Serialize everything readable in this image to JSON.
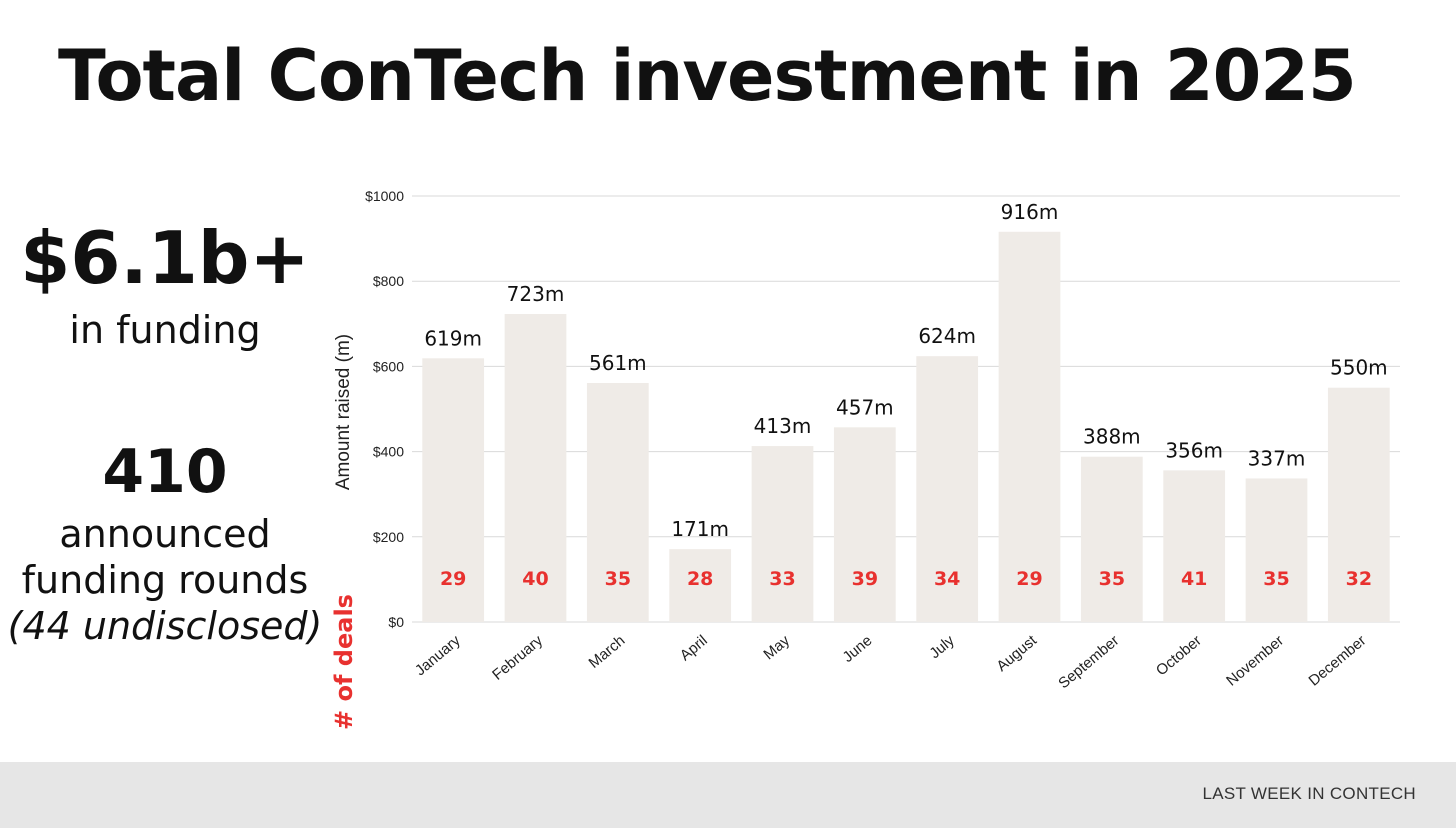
{
  "title": "Total ConTech investment in 2025",
  "stats": {
    "funding_value": "$6.1b+",
    "funding_label": "in funding",
    "rounds_value": "410",
    "rounds_label_1": "announced",
    "rounds_label_2": "funding rounds",
    "rounds_note": "(44 undisclosed)"
  },
  "footer": {
    "brand": "LAST WEEK IN CONTECH"
  },
  "colors": {
    "bar": "#efebe7",
    "deals": "#e8312f",
    "grid": "#d9d9d9",
    "text": "#111111"
  },
  "chart_data": {
    "type": "bar",
    "title": "",
    "xlabel": "",
    "ylabel": "Amount raised (m)",
    "secondary_label": "# of deals",
    "ylim": [
      0,
      1000
    ],
    "yticks": [
      0,
      200,
      400,
      600,
      800,
      1000
    ],
    "ytick_labels": [
      "$0",
      "$200",
      "$400",
      "$600",
      "$800",
      "$1000"
    ],
    "categories": [
      "January",
      "February",
      "March",
      "April",
      "May",
      "June",
      "July",
      "August",
      "September",
      "October",
      "November",
      "December"
    ],
    "values": [
      619,
      723,
      561,
      171,
      413,
      457,
      624,
      916,
      388,
      356,
      337,
      550
    ],
    "value_labels": [
      "619m",
      "723m",
      "561m",
      "171m",
      "413m",
      "457m",
      "624m",
      "916m",
      "388m",
      "356m",
      "337m",
      "550m"
    ],
    "deals": [
      29,
      40,
      35,
      28,
      33,
      39,
      34,
      29,
      35,
      41,
      35,
      32
    ],
    "grid": true
  }
}
